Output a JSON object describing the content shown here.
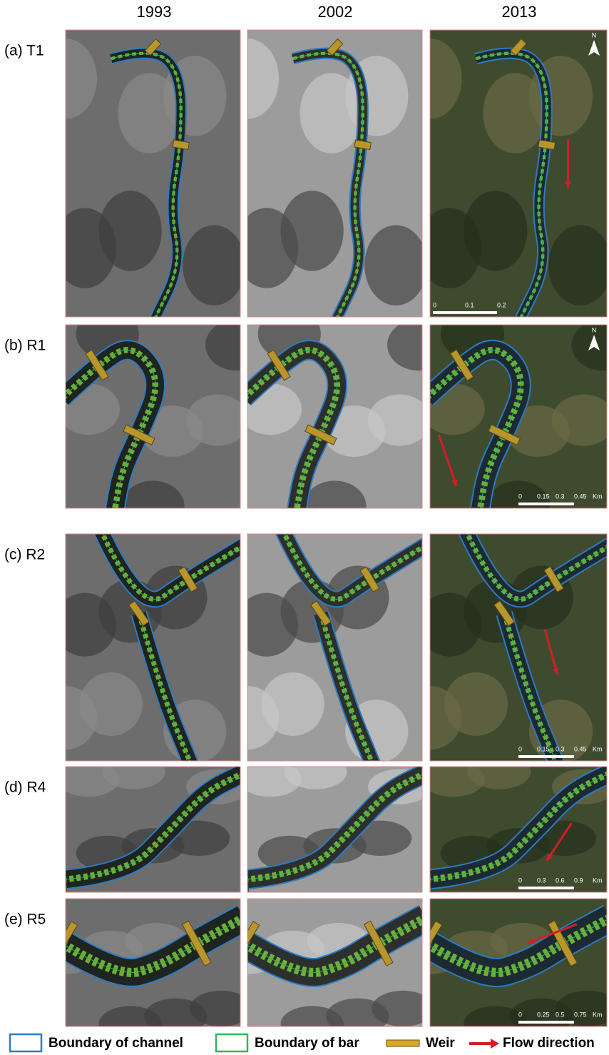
{
  "columns": [
    "1993",
    "2002",
    "2013"
  ],
  "rows": [
    {
      "label": "(a) T1",
      "scale": [
        "0",
        "0.1",
        "0.2"
      ],
      "north": "N"
    },
    {
      "label": "(b) R1",
      "scale": [
        "0",
        "0.15",
        "0.3",
        "0.45",
        "Km"
      ],
      "north": "N"
    },
    {
      "label": "(c) R2",
      "scale": [
        "0",
        "0.15",
        "0.3",
        "0.45",
        "Km"
      ]
    },
    {
      "label": "(d) R4",
      "scale": [
        "0",
        "0.3",
        "0.6",
        "0.9",
        "Km"
      ]
    },
    {
      "label": "(e) R5",
      "scale": [
        "0",
        "0.25",
        "0.5",
        "0.75",
        "Km"
      ]
    }
  ],
  "legend": [
    "Boundary of channel",
    "Boundary of bar",
    "Weir",
    "Flow direction"
  ]
}
